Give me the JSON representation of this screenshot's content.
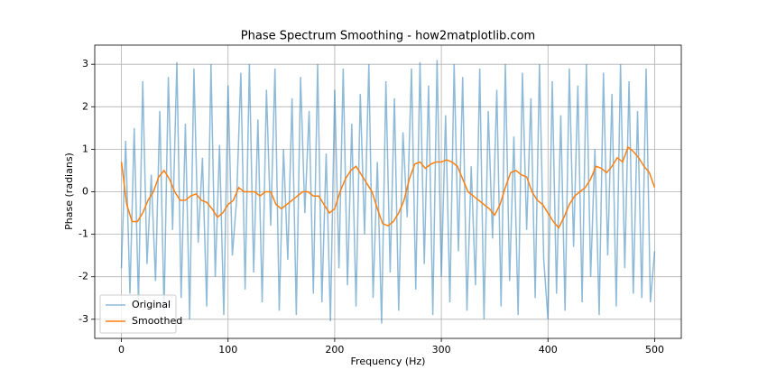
{
  "chart_data": {
    "type": "line",
    "title": "Phase Spectrum Smoothing - how2matplotlib.com",
    "x_label": "Frequency (Hz)",
    "y_label": "Phase (radians)",
    "xlim": [
      -25,
      525
    ],
    "ylim": [
      -3.45,
      3.45
    ],
    "xticks": [
      0,
      100,
      200,
      300,
      400,
      500
    ],
    "yticks": [
      -3,
      -2,
      -1,
      0,
      1,
      2,
      3
    ],
    "grid": true,
    "legend": "lower left",
    "series": [
      {
        "name": "Original",
        "color": "#1f77b4",
        "opacity": 0.5,
        "x": [
          0,
          4,
          8,
          12,
          16,
          20,
          24,
          28,
          32,
          36,
          40,
          44,
          48,
          52,
          56,
          60,
          64,
          68,
          72,
          76,
          80,
          84,
          88,
          92,
          96,
          100,
          104,
          108,
          112,
          116,
          120,
          124,
          128,
          132,
          136,
          140,
          144,
          148,
          152,
          156,
          160,
          164,
          168,
          172,
          176,
          180,
          184,
          188,
          192,
          196,
          200,
          204,
          208,
          212,
          216,
          220,
          224,
          228,
          232,
          236,
          240,
          244,
          248,
          252,
          256,
          260,
          264,
          268,
          272,
          276,
          280,
          284,
          288,
          292,
          296,
          300,
          304,
          308,
          312,
          316,
          320,
          324,
          328,
          332,
          336,
          340,
          344,
          348,
          352,
          356,
          360,
          364,
          368,
          372,
          376,
          380,
          384,
          388,
          392,
          396,
          400,
          404,
          408,
          412,
          416,
          420,
          424,
          428,
          432,
          436,
          440,
          444,
          448,
          452,
          456,
          460,
          464,
          468,
          472,
          476,
          480,
          484,
          488,
          492,
          496,
          500
        ],
        "values": [
          -1.8,
          1.2,
          -2.4,
          1.5,
          -2.6,
          2.6,
          -1.7,
          0.4,
          -2.1,
          1.9,
          -2.8,
          2.7,
          -0.9,
          3.05,
          -2.5,
          1.6,
          -3.0,
          2.9,
          -1.2,
          0.8,
          -2.7,
          3.0,
          -2.0,
          1.1,
          -2.9,
          2.5,
          -1.5,
          -0.2,
          2.8,
          -2.3,
          3.0,
          -1.9,
          1.7,
          -2.6,
          2.4,
          -0.8,
          2.9,
          -2.8,
          1.0,
          -1.6,
          2.2,
          -2.9,
          2.7,
          -0.5,
          1.9,
          -2.4,
          3.0,
          -2.6,
          0.9,
          -3.05,
          2.4,
          -1.8,
          2.9,
          -2.2,
          1.6,
          -2.7,
          2.3,
          -1.0,
          3.0,
          -2.5,
          0.7,
          -3.1,
          2.6,
          -1.9,
          2.2,
          -2.8,
          1.4,
          -0.6,
          2.9,
          -2.3,
          3.05,
          -1.7,
          2.5,
          -2.9,
          3.1,
          -2.0,
          1.8,
          -2.6,
          3.0,
          -1.4,
          2.7,
          -2.8,
          0.6,
          -2.2,
          2.9,
          -3.0,
          1.9,
          -1.1,
          2.4,
          -2.7,
          3.0,
          -2.1,
          1.3,
          -2.9,
          2.8,
          -0.9,
          2.2,
          -2.5,
          3.0,
          -1.6,
          -3.0,
          2.6,
          -2.4,
          1.8,
          -2.8,
          2.9,
          -1.3,
          2.5,
          -2.6,
          3.0,
          -2.0,
          1.0,
          -2.9,
          2.8,
          -1.5,
          2.3,
          -2.7,
          3.0,
          -1.8,
          2.6,
          -2.4,
          1.9,
          -2.5,
          2.9,
          -2.6,
          -1.4
        ]
      },
      {
        "name": "Smoothed",
        "color": "#ff7f0e",
        "opacity": 1,
        "x": [
          0,
          5,
          10,
          15,
          20,
          25,
          30,
          35,
          40,
          45,
          50,
          55,
          60,
          65,
          70,
          75,
          80,
          85,
          90,
          95,
          100,
          105,
          110,
          115,
          120,
          125,
          130,
          135,
          140,
          145,
          150,
          155,
          160,
          165,
          170,
          175,
          180,
          185,
          190,
          195,
          200,
          205,
          210,
          215,
          220,
          225,
          230,
          235,
          240,
          245,
          250,
          255,
          260,
          265,
          270,
          275,
          280,
          285,
          290,
          295,
          300,
          305,
          310,
          315,
          320,
          325,
          330,
          335,
          340,
          345,
          350,
          355,
          360,
          365,
          370,
          375,
          380,
          385,
          390,
          395,
          400,
          405,
          410,
          415,
          420,
          425,
          430,
          435,
          440,
          445,
          450,
          455,
          460,
          465,
          470,
          475,
          480,
          485,
          490,
          495,
          500
        ],
        "values": [
          0.7,
          -0.3,
          -0.7,
          -0.7,
          -0.5,
          -0.2,
          0.0,
          0.35,
          0.5,
          0.3,
          0.0,
          -0.2,
          -0.2,
          -0.1,
          -0.05,
          -0.2,
          -0.25,
          -0.4,
          -0.6,
          -0.5,
          -0.3,
          -0.2,
          0.1,
          0.0,
          0.0,
          0.0,
          -0.1,
          0.0,
          0.0,
          -0.3,
          -0.4,
          -0.3,
          -0.2,
          -0.1,
          0.0,
          0.0,
          -0.1,
          -0.1,
          -0.3,
          -0.5,
          -0.4,
          0.0,
          0.3,
          0.5,
          0.6,
          0.4,
          0.2,
          0.0,
          -0.4,
          -0.75,
          -0.8,
          -0.7,
          -0.5,
          -0.2,
          0.3,
          0.65,
          0.7,
          0.55,
          0.65,
          0.7,
          0.7,
          0.75,
          0.7,
          0.6,
          0.3,
          0.0,
          -0.1,
          -0.2,
          -0.3,
          -0.4,
          -0.55,
          -0.3,
          0.1,
          0.45,
          0.5,
          0.4,
          0.35,
          0.0,
          -0.2,
          -0.3,
          -0.5,
          -0.7,
          -0.85,
          -0.6,
          -0.3,
          -0.1,
          0.0,
          0.1,
          0.3,
          0.6,
          0.55,
          0.45,
          0.6,
          0.8,
          0.7,
          1.05,
          0.95,
          0.8,
          0.6,
          0.45,
          0.1
        ]
      }
    ]
  }
}
